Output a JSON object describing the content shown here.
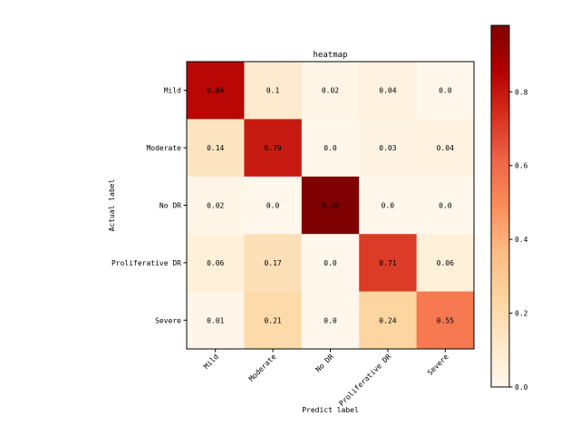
{
  "chart_data": {
    "type": "heatmap",
    "title": "heatmap",
    "xlabel": "Predict label",
    "ylabel": "Actual label",
    "x_categories": [
      "Mild",
      "Moderate",
      "No DR",
      "Proliferative DR",
      "Severe"
    ],
    "y_categories": [
      "Mild",
      "Moderate",
      "No DR",
      "Proliferative DR",
      "Severe"
    ],
    "values": [
      [
        0.84,
        0.1,
        0.02,
        0.04,
        0.0
      ],
      [
        0.14,
        0.79,
        0.0,
        0.03,
        0.04
      ],
      [
        0.02,
        0.0,
        0.98,
        0.0,
        0.0
      ],
      [
        0.06,
        0.17,
        0.0,
        0.71,
        0.06
      ],
      [
        0.01,
        0.21,
        0.0,
        0.24,
        0.55
      ]
    ],
    "value_labels": [
      [
        "0.84",
        "0.1",
        "0.02",
        "0.04",
        "0.0"
      ],
      [
        "0.14",
        "0.79",
        "0.0",
        "0.03",
        "0.04"
      ],
      [
        "0.02",
        "0.0",
        "0.98",
        "0.0",
        "0.0"
      ],
      [
        "0.06",
        "0.17",
        "0.0",
        "0.71",
        "0.06"
      ],
      [
        "0.01",
        "0.21",
        "0.0",
        "0.24",
        "0.55"
      ]
    ],
    "colormap": "OrRd",
    "colorbar": {
      "range": [
        0.0,
        0.98
      ],
      "ticks": [
        0.0,
        0.2,
        0.4,
        0.6,
        0.8
      ],
      "tick_labels": [
        "0.0",
        "0.2",
        "0.4",
        "0.6",
        "0.8"
      ]
    },
    "colormap_stops": [
      "#fff7ec",
      "#fee8c8",
      "#fdd49e",
      "#fdbb84",
      "#fc8d59",
      "#ef6548",
      "#d7301f",
      "#b30000",
      "#7f0000"
    ]
  }
}
